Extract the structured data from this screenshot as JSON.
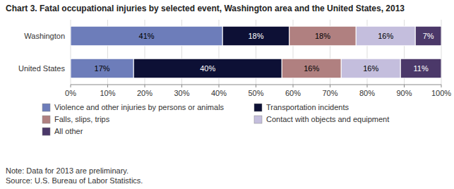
{
  "chart_data": {
    "type": "bar",
    "orientation": "horizontal",
    "stacked": true,
    "data_labels": true,
    "grid": true,
    "legend": "bottom",
    "title": "Chart 3. Fatal occupational injuries by selected event, Washington area and the United States, 2013",
    "categories": [
      "United States",
      "Washington"
    ],
    "series": [
      {
        "name": "Violence and other injuries by persons or animals",
        "color": "#6d7dba",
        "values": [
          17,
          41
        ],
        "value_labels": [
          "17%",
          "41%"
        ]
      },
      {
        "name": "Transportation incidents",
        "color": "#0d1035",
        "values": [
          40,
          18
        ],
        "value_labels": [
          "40%",
          "18%"
        ]
      },
      {
        "name": "Falls, slips, trips",
        "color": "#b08080",
        "values": [
          16,
          18
        ],
        "value_labels": [
          "16%",
          "18%"
        ]
      },
      {
        "name": "Contact with objects and equipment",
        "color": "#c4bedd",
        "values": [
          16,
          16
        ],
        "value_labels": [
          "16%",
          "16%"
        ]
      },
      {
        "name": "All other",
        "color": "#4b3869",
        "values": [
          11,
          7
        ],
        "value_labels": [
          "11%",
          "7%"
        ]
      }
    ],
    "xlim": [
      0,
      100
    ],
    "xticks": [
      {
        "value": 0,
        "label": "0%"
      },
      {
        "value": 10,
        "label": "10%"
      },
      {
        "value": 20,
        "label": "20%"
      },
      {
        "value": 30,
        "label": "30%"
      },
      {
        "value": 40,
        "label": "40%"
      },
      {
        "value": 50,
        "label": "50%"
      },
      {
        "value": 60,
        "label": "60%"
      },
      {
        "value": 70,
        "label": "70%"
      },
      {
        "value": 80,
        "label": "80%"
      },
      {
        "value": 90,
        "label": "90%"
      },
      {
        "value": 100,
        "label": "100%"
      }
    ],
    "annotations": [
      "Note: Data for 2013 are preliminary.",
      "Source: U.S. Bureau of Labor Statistics."
    ]
  }
}
